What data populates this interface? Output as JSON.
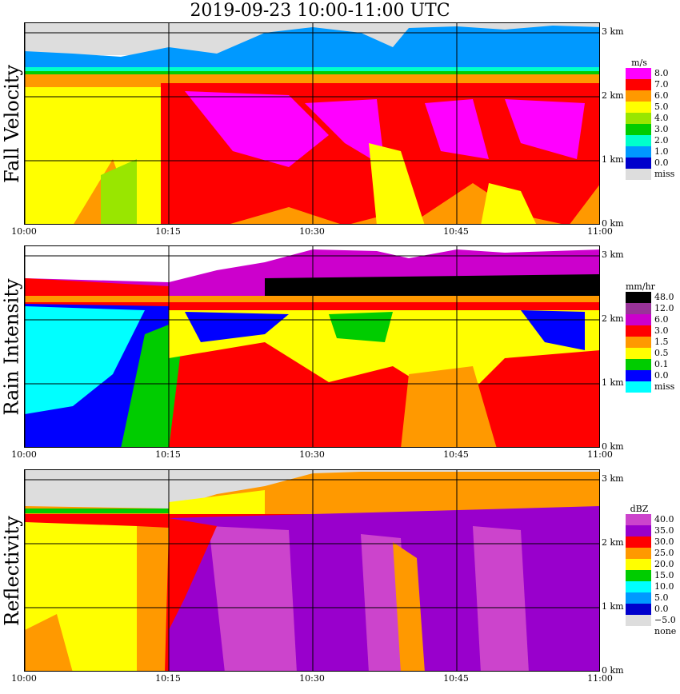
{
  "title": "2019-09-23   10:00-11:00 UTC",
  "x_ticks": [
    "10:00",
    "10:15",
    "10:30",
    "10:45",
    "11:00"
  ],
  "y_ticks": [
    "0 km",
    "1 km",
    "2 km",
    "3 km"
  ],
  "panels": [
    {
      "label": "Fall Velocity",
      "unit": "m/s",
      "legend": [
        {
          "label": "8.0",
          "color": "#ff00ff"
        },
        {
          "label": "7.0",
          "color": "#ff0000"
        },
        {
          "label": "6.0",
          "color": "#ff9900"
        },
        {
          "label": "5.0",
          "color": "#ffff00"
        },
        {
          "label": "4.0",
          "color": "#99e600"
        },
        {
          "label": "3.0",
          "color": "#00cc00"
        },
        {
          "label": "2.0",
          "color": "#00ffcc"
        },
        {
          "label": "1.0",
          "color": "#0099ff"
        },
        {
          "label": "0.0",
          "color": "#0000cc"
        },
        {
          "label": "miss",
          "color": "#dddddd"
        }
      ]
    },
    {
      "label": "Rain Intensity",
      "unit": "mm/hr",
      "legend": [
        {
          "label": "48.0",
          "color": "#000000"
        },
        {
          "label": "12.0",
          "color": "#993399"
        },
        {
          "label": "6.0",
          "color": "#cc00cc"
        },
        {
          "label": "3.0",
          "color": "#ff0000"
        },
        {
          "label": "1.5",
          "color": "#ff9900"
        },
        {
          "label": "0.5",
          "color": "#ffff00"
        },
        {
          "label": "0.1",
          "color": "#00cc00"
        },
        {
          "label": "0.0",
          "color": "#0000ff"
        },
        {
          "label": "miss",
          "color": "#00ffff"
        }
      ]
    },
    {
      "label": "Reflectivity",
      "unit": "dBZ",
      "legend": [
        {
          "label": "40.0",
          "color": "#cc44cc"
        },
        {
          "label": "35.0",
          "color": "#9900cc"
        },
        {
          "label": "30.0",
          "color": "#ff0000"
        },
        {
          "label": "25.0",
          "color": "#ff9900"
        },
        {
          "label": "20.0",
          "color": "#ffff00"
        },
        {
          "label": "15.0",
          "color": "#00cc00"
        },
        {
          "label": "10.0",
          "color": "#00ffff"
        },
        {
          "label": "5.0",
          "color": "#0099ff"
        },
        {
          "label": "0.0",
          "color": "#0000cc"
        },
        {
          "label": "−5.0",
          "color": "#dddddd"
        },
        {
          "label": "none",
          "color": "#ffffff"
        }
      ]
    }
  ],
  "chart_data": [
    {
      "type": "heatmap",
      "title": "Fall Velocity",
      "unit": "m/s",
      "x": [
        "10:00",
        "10:15",
        "10:30",
        "10:45",
        "11:00"
      ],
      "y": [
        "0 km",
        "1 km",
        "2 km",
        "3 km"
      ],
      "bands": [
        {
          "height_km": [
            0.0,
            2.3
          ],
          "value_range": [
            5.0,
            8.0
          ]
        },
        {
          "height_km": [
            2.3,
            2.6
          ],
          "value_range": [
            2.0,
            6.0
          ]
        },
        {
          "height_km": [
            2.6,
            3.1
          ],
          "value_range": [
            0.0,
            2.0
          ]
        }
      ]
    },
    {
      "type": "heatmap",
      "title": "Rain Intensity",
      "unit": "mm/hr",
      "x": [
        "10:00",
        "10:15",
        "10:30",
        "10:45",
        "11:00"
      ],
      "y": [
        "0 km",
        "1 km",
        "2 km",
        "3 km"
      ],
      "bands": [
        {
          "height_km": [
            0.0,
            2.1
          ],
          "value_range": [
            0.0,
            6.0
          ]
        },
        {
          "height_km": [
            2.1,
            2.6
          ],
          "value_range": [
            3.0,
            48.0
          ]
        },
        {
          "height_km": [
            2.6,
            3.1
          ],
          "value_range": [
            6.0,
            12.0
          ]
        }
      ]
    },
    {
      "type": "heatmap",
      "title": "Reflectivity",
      "unit": "dBZ",
      "x": [
        "10:00",
        "10:15",
        "10:30",
        "10:45",
        "11:00"
      ],
      "y": [
        "0 km",
        "1 km",
        "2 km",
        "3 km"
      ],
      "bands": [
        {
          "height_km": [
            0.0,
            2.4
          ],
          "value_range": [
            20.0,
            40.0
          ]
        },
        {
          "height_km": [
            2.4,
            2.8
          ],
          "value_range": [
            20.0,
            30.0
          ]
        },
        {
          "height_km": [
            2.8,
            3.1
          ],
          "value_range": [
            -5.0,
            25.0
          ]
        }
      ]
    }
  ]
}
